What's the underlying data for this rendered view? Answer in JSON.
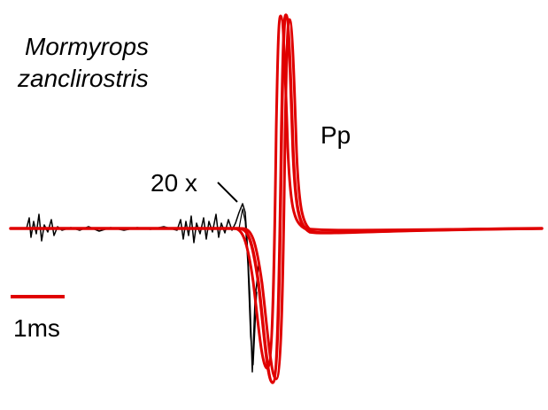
{
  "figure": {
    "species": [
      "Mormyrops",
      "zanclirostris"
    ],
    "waveform_label": "Pp",
    "gain_label": "20 x",
    "scale_bar_label": "1ms"
  }
}
